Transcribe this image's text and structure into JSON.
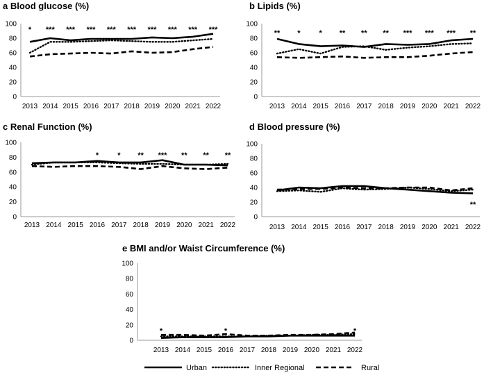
{
  "legend": {
    "items": [
      {
        "name": "Urban",
        "style": "solid"
      },
      {
        "name": "Inner Regional",
        "style": "dotted"
      },
      {
        "name": "Rural",
        "style": "dashed"
      }
    ]
  },
  "chart_data": [
    {
      "type": "line",
      "letter": "a",
      "title": "Blood glucose (%)",
      "categories": [
        "2013",
        "2014",
        "2015",
        "2016",
        "2017",
        "2018",
        "2019",
        "2020",
        "2021",
        "2022"
      ],
      "ylim": [
        0,
        100
      ],
      "yticks": [
        0,
        20,
        40,
        60,
        80,
        100
      ],
      "series": [
        {
          "name": "Urban",
          "values": [
            75,
            80,
            77,
            79,
            79,
            79,
            81,
            80,
            82,
            86
          ]
        },
        {
          "name": "Inner Regional",
          "values": [
            60,
            75,
            75,
            76,
            77,
            76,
            75,
            75,
            77,
            79
          ]
        },
        {
          "name": "Rural",
          "values": [
            55,
            58,
            59,
            60,
            59,
            62,
            60,
            61,
            65,
            68
          ]
        }
      ],
      "significance": [
        "*",
        "***",
        "***",
        "***",
        "***",
        "***",
        "***",
        "***",
        "***",
        "***"
      ]
    },
    {
      "type": "line",
      "letter": "b",
      "title": "Lipids (%)",
      "categories": [
        "2013",
        "2014",
        "2015",
        "2016",
        "2017",
        "2018",
        "2019",
        "2020",
        "2021",
        "2022"
      ],
      "ylim": [
        0,
        100
      ],
      "yticks": [
        0,
        20,
        40,
        60,
        80,
        100
      ],
      "series": [
        {
          "name": "Urban",
          "values": [
            79,
            72,
            69,
            70,
            68,
            72,
            71,
            72,
            77,
            79
          ]
        },
        {
          "name": "Inner Regional",
          "values": [
            59,
            65,
            59,
            68,
            69,
            64,
            67,
            69,
            72,
            73
          ]
        },
        {
          "name": "Rural",
          "values": [
            54,
            53,
            54,
            55,
            53,
            54,
            54,
            56,
            59,
            61
          ]
        }
      ],
      "significance": [
        "**",
        "*",
        "*",
        "**",
        "**",
        "**",
        "***",
        "***",
        "***",
        "**"
      ]
    },
    {
      "type": "line",
      "letter": "c",
      "title": "Renal Function (%)",
      "categories": [
        "2013",
        "2014",
        "2015",
        "2016",
        "2017",
        "2018",
        "2019",
        "2020",
        "2021",
        "2022"
      ],
      "ylim": [
        0,
        100
      ],
      "yticks": [
        0,
        20,
        40,
        60,
        80,
        100
      ],
      "series": [
        {
          "name": "Urban",
          "values": [
            72,
            73,
            73,
            75,
            73,
            73,
            76,
            70,
            70,
            69
          ]
        },
        {
          "name": "Inner Regional",
          "values": [
            70,
            73,
            73,
            73,
            72,
            71,
            71,
            70,
            70,
            71
          ]
        },
        {
          "name": "Rural",
          "values": [
            68,
            67,
            68,
            68,
            67,
            64,
            68,
            65,
            64,
            66
          ]
        }
      ],
      "significance": [
        "",
        "",
        "",
        "*",
        "*",
        "**",
        "***",
        "**",
        "**",
        "**"
      ]
    },
    {
      "type": "line",
      "letter": "d",
      "title": "Blood pressure (%)",
      "categories": [
        "2013",
        "2014",
        "2015",
        "2016",
        "2017",
        "2018",
        "2019",
        "2020",
        "2021",
        "2022"
      ],
      "ylim": [
        0,
        100
      ],
      "yticks": [
        0,
        20,
        40,
        60,
        80,
        100
      ],
      "series": [
        {
          "name": "Urban",
          "values": [
            36,
            40,
            39,
            42,
            42,
            39,
            37,
            35,
            33,
            32
          ]
        },
        {
          "name": "Inner Regional",
          "values": [
            35,
            36,
            34,
            39,
            37,
            38,
            40,
            38,
            35,
            37
          ]
        },
        {
          "name": "Rural",
          "values": [
            37,
            38,
            38,
            40,
            39,
            39,
            40,
            40,
            36,
            39
          ]
        }
      ],
      "significance": [
        "",
        "",
        "",
        "",
        "",
        "",
        "",
        "",
        "",
        "**"
      ]
    },
    {
      "type": "line",
      "letter": "e",
      "title": "BMI and/or Waist Circumference (%)",
      "categories": [
        "2013",
        "2014",
        "2015",
        "2016",
        "2017",
        "2018",
        "2019",
        "2020",
        "2021",
        "2022"
      ],
      "ylim": [
        0,
        100
      ],
      "yticks": [
        0,
        20,
        40,
        60,
        80,
        100
      ],
      "series": [
        {
          "name": "Urban",
          "values": [
            3,
            4,
            4,
            4,
            5,
            5,
            6,
            6,
            6,
            6
          ]
        },
        {
          "name": "Inner Regional",
          "values": [
            5,
            5,
            5,
            5,
            5,
            6,
            6,
            7,
            7,
            8
          ]
        },
        {
          "name": "Rural",
          "values": [
            7,
            7,
            6,
            8,
            6,
            6,
            7,
            7,
            8,
            10
          ]
        }
      ],
      "significance": [
        "*",
        "",
        "",
        "*",
        "",
        "",
        "",
        "",
        "",
        "*"
      ]
    }
  ]
}
